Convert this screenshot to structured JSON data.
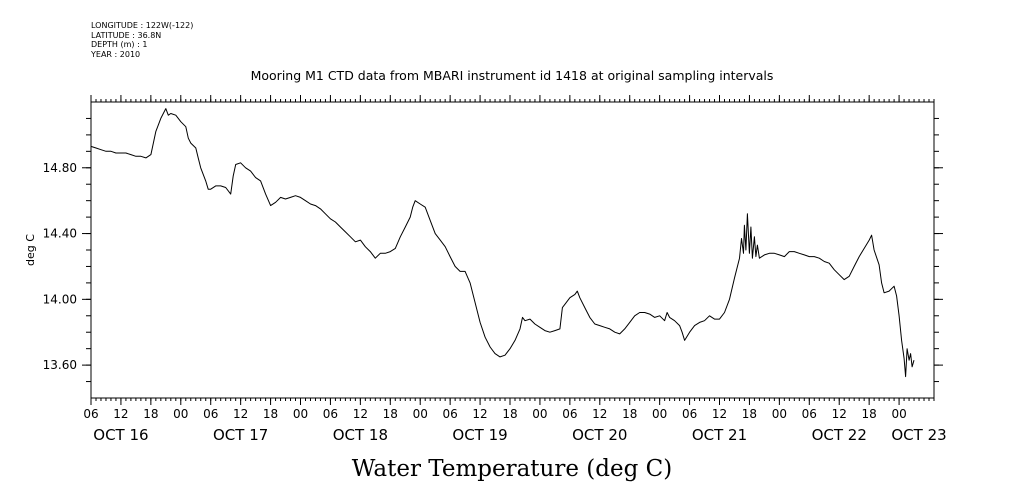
{
  "metadata": [
    {
      "key": "LONGITUDE",
      "value": "122W(-122)"
    },
    {
      "key": "LATITUDE",
      "value": "36.8N"
    },
    {
      "key": "DEPTH (m)",
      "value": "1"
    },
    {
      "key": "YEAR",
      "value": "2010"
    }
  ],
  "chart_data": {
    "type": "line",
    "title": "Mooring M1 CTD data from MBARI instrument id 1418 at original sampling intervals",
    "xlabel": "Water Temperature (deg C)",
    "ylabel": "deg C",
    "xlim": [
      0,
      169
    ],
    "ylim": [
      13.4,
      15.2
    ],
    "y_ticks": [
      13.6,
      14.0,
      14.4,
      14.8
    ],
    "y_tick_labels": [
      "13.60",
      "14.00",
      "14.40",
      "14.80"
    ],
    "x_hour_ticks": [
      {
        "t": 0,
        "label": "06"
      },
      {
        "t": 6,
        "label": "12"
      },
      {
        "t": 12,
        "label": "18"
      },
      {
        "t": 18,
        "label": "00"
      },
      {
        "t": 24,
        "label": "06"
      },
      {
        "t": 30,
        "label": "12"
      },
      {
        "t": 36,
        "label": "18"
      },
      {
        "t": 42,
        "label": "00"
      },
      {
        "t": 48,
        "label": "06"
      },
      {
        "t": 54,
        "label": "12"
      },
      {
        "t": 60,
        "label": "18"
      },
      {
        "t": 66,
        "label": "00"
      },
      {
        "t": 72,
        "label": "06"
      },
      {
        "t": 78,
        "label": "12"
      },
      {
        "t": 84,
        "label": "18"
      },
      {
        "t": 90,
        "label": "00"
      },
      {
        "t": 96,
        "label": "06"
      },
      {
        "t": 102,
        "label": "12"
      },
      {
        "t": 108,
        "label": "18"
      },
      {
        "t": 114,
        "label": "00"
      },
      {
        "t": 120,
        "label": "06"
      },
      {
        "t": 126,
        "label": "12"
      },
      {
        "t": 132,
        "label": "18"
      },
      {
        "t": 138,
        "label": "00"
      },
      {
        "t": 144,
        "label": "06"
      },
      {
        "t": 150,
        "label": "12"
      },
      {
        "t": 156,
        "label": "18"
      },
      {
        "t": 162,
        "label": "00"
      }
    ],
    "x_day_labels": [
      {
        "t": 6,
        "label": "OCT 16"
      },
      {
        "t": 30,
        "label": "OCT 17"
      },
      {
        "t": 54,
        "label": "OCT 18"
      },
      {
        "t": 78,
        "label": "OCT 19"
      },
      {
        "t": 102,
        "label": "OCT 20"
      },
      {
        "t": 126,
        "label": "OCT 21"
      },
      {
        "t": 150,
        "label": "OCT 22"
      },
      {
        "t": 166,
        "label": "OCT 23"
      }
    ],
    "series": [
      {
        "color": "#000000",
        "points": [
          [
            0,
            14.93
          ],
          [
            1,
            14.92
          ],
          [
            2,
            14.91
          ],
          [
            3,
            14.9
          ],
          [
            4,
            14.9
          ],
          [
            5,
            14.89
          ],
          [
            6,
            14.89
          ],
          [
            7,
            14.89
          ],
          [
            8,
            14.88
          ],
          [
            9,
            14.87
          ],
          [
            10,
            14.87
          ],
          [
            11,
            14.86
          ],
          [
            12,
            14.88
          ],
          [
            13,
            15.02
          ],
          [
            14,
            15.1
          ],
          [
            15,
            15.16
          ],
          [
            15.5,
            15.12
          ],
          [
            16,
            15.13
          ],
          [
            17,
            15.12
          ],
          [
            18,
            15.08
          ],
          [
            19,
            15.05
          ],
          [
            19.5,
            14.98
          ],
          [
            20,
            14.95
          ],
          [
            21,
            14.92
          ],
          [
            21.5,
            14.86
          ],
          [
            22,
            14.8
          ],
          [
            23,
            14.72
          ],
          [
            23.5,
            14.67
          ],
          [
            24,
            14.67
          ],
          [
            25,
            14.69
          ],
          [
            26,
            14.69
          ],
          [
            27,
            14.68
          ],
          [
            28,
            14.64
          ],
          [
            28.5,
            14.75
          ],
          [
            29,
            14.82
          ],
          [
            30,
            14.83
          ],
          [
            31,
            14.8
          ],
          [
            32,
            14.78
          ],
          [
            33,
            14.74
          ],
          [
            34,
            14.72
          ],
          [
            35,
            14.64
          ],
          [
            36,
            14.57
          ],
          [
            37,
            14.59
          ],
          [
            38,
            14.62
          ],
          [
            39,
            14.61
          ],
          [
            40,
            14.62
          ],
          [
            41,
            14.63
          ],
          [
            42,
            14.62
          ],
          [
            43,
            14.6
          ],
          [
            44,
            14.58
          ],
          [
            45,
            14.57
          ],
          [
            46,
            14.55
          ],
          [
            47,
            14.52
          ],
          [
            48,
            14.49
          ],
          [
            49,
            14.47
          ],
          [
            50,
            14.44
          ],
          [
            51,
            14.41
          ],
          [
            52,
            14.38
          ],
          [
            53,
            14.35
          ],
          [
            54,
            14.36
          ],
          [
            55,
            14.32
          ],
          [
            56,
            14.29
          ],
          [
            57,
            14.25
          ],
          [
            58,
            14.28
          ],
          [
            59,
            14.28
          ],
          [
            60,
            14.29
          ],
          [
            61,
            14.31
          ],
          [
            62,
            14.38
          ],
          [
            63,
            14.44
          ],
          [
            64,
            14.5
          ],
          [
            64.5,
            14.56
          ],
          [
            65,
            14.6
          ],
          [
            66,
            14.58
          ],
          [
            67,
            14.56
          ],
          [
            68,
            14.48
          ],
          [
            69,
            14.4
          ],
          [
            70,
            14.36
          ],
          [
            71,
            14.32
          ],
          [
            72,
            14.26
          ],
          [
            73,
            14.2
          ],
          [
            74,
            14.17
          ],
          [
            75,
            14.17
          ],
          [
            76,
            14.1
          ],
          [
            77,
            13.98
          ],
          [
            78,
            13.86
          ],
          [
            79,
            13.77
          ],
          [
            80,
            13.71
          ],
          [
            81,
            13.67
          ],
          [
            82,
            13.65
          ],
          [
            83,
            13.66
          ],
          [
            84,
            13.7
          ],
          [
            85,
            13.75
          ],
          [
            86,
            13.82
          ],
          [
            86.5,
            13.89
          ],
          [
            87,
            13.87
          ],
          [
            88,
            13.88
          ],
          [
            89,
            13.85
          ],
          [
            90,
            13.83
          ],
          [
            91,
            13.81
          ],
          [
            92,
            13.8
          ],
          [
            93,
            13.81
          ],
          [
            94,
            13.82
          ],
          [
            94.5,
            13.95
          ],
          [
            95,
            13.97
          ],
          [
            96,
            14.01
          ],
          [
            97,
            14.03
          ],
          [
            97.5,
            14.05
          ],
          [
            98,
            14.01
          ],
          [
            99,
            13.95
          ],
          [
            100,
            13.89
          ],
          [
            101,
            13.85
          ],
          [
            102,
            13.84
          ],
          [
            103,
            13.83
          ],
          [
            104,
            13.82
          ],
          [
            105,
            13.8
          ],
          [
            106,
            13.79
          ],
          [
            107,
            13.82
          ],
          [
            108,
            13.86
          ],
          [
            109,
            13.9
          ],
          [
            110,
            13.92
          ],
          [
            111,
            13.92
          ],
          [
            112,
            13.91
          ],
          [
            113,
            13.89
          ],
          [
            114,
            13.9
          ],
          [
            115,
            13.87
          ],
          [
            115.5,
            13.92
          ],
          [
            116,
            13.89
          ],
          [
            117,
            13.87
          ],
          [
            118,
            13.84
          ],
          [
            118.5,
            13.8
          ],
          [
            119,
            13.75
          ],
          [
            120,
            13.8
          ],
          [
            121,
            13.84
          ],
          [
            122,
            13.86
          ],
          [
            123,
            13.87
          ],
          [
            124,
            13.9
          ],
          [
            125,
            13.88
          ],
          [
            126,
            13.88
          ],
          [
            127,
            13.92
          ],
          [
            128,
            14.0
          ],
          [
            129,
            14.13
          ],
          [
            130,
            14.25
          ],
          [
            130.4,
            14.37
          ],
          [
            130.8,
            14.28
          ],
          [
            131,
            14.45
          ],
          [
            131.3,
            14.3
          ],
          [
            131.6,
            14.52
          ],
          [
            132,
            14.28
          ],
          [
            132.3,
            14.44
          ],
          [
            132.6,
            14.25
          ],
          [
            133,
            14.38
          ],
          [
            133.3,
            14.26
          ],
          [
            133.6,
            14.33
          ],
          [
            134,
            14.25
          ],
          [
            135,
            14.27
          ],
          [
            136,
            14.28
          ],
          [
            137,
            14.28
          ],
          [
            138,
            14.27
          ],
          [
            139,
            14.26
          ],
          [
            140,
            14.29
          ],
          [
            141,
            14.29
          ],
          [
            142,
            14.28
          ],
          [
            143,
            14.27
          ],
          [
            144,
            14.26
          ],
          [
            145,
            14.26
          ],
          [
            146,
            14.25
          ],
          [
            147,
            14.23
          ],
          [
            148,
            14.22
          ],
          [
            149,
            14.18
          ],
          [
            150,
            14.15
          ],
          [
            151,
            14.12
          ],
          [
            152,
            14.14
          ],
          [
            153,
            14.2
          ],
          [
            154,
            14.26
          ],
          [
            155,
            14.31
          ],
          [
            156,
            14.36
          ],
          [
            156.5,
            14.39
          ],
          [
            157,
            14.3
          ],
          [
            158,
            14.21
          ],
          [
            158.5,
            14.1
          ],
          [
            159,
            14.04
          ],
          [
            160,
            14.05
          ],
          [
            161,
            14.08
          ],
          [
            161.5,
            14.02
          ],
          [
            162,
            13.9
          ],
          [
            162.5,
            13.75
          ],
          [
            163,
            13.64
          ],
          [
            163.3,
            13.53
          ],
          [
            163.6,
            13.7
          ],
          [
            164,
            13.63
          ],
          [
            164.3,
            13.67
          ],
          [
            164.6,
            13.59
          ],
          [
            165,
            13.63
          ]
        ]
      }
    ]
  }
}
